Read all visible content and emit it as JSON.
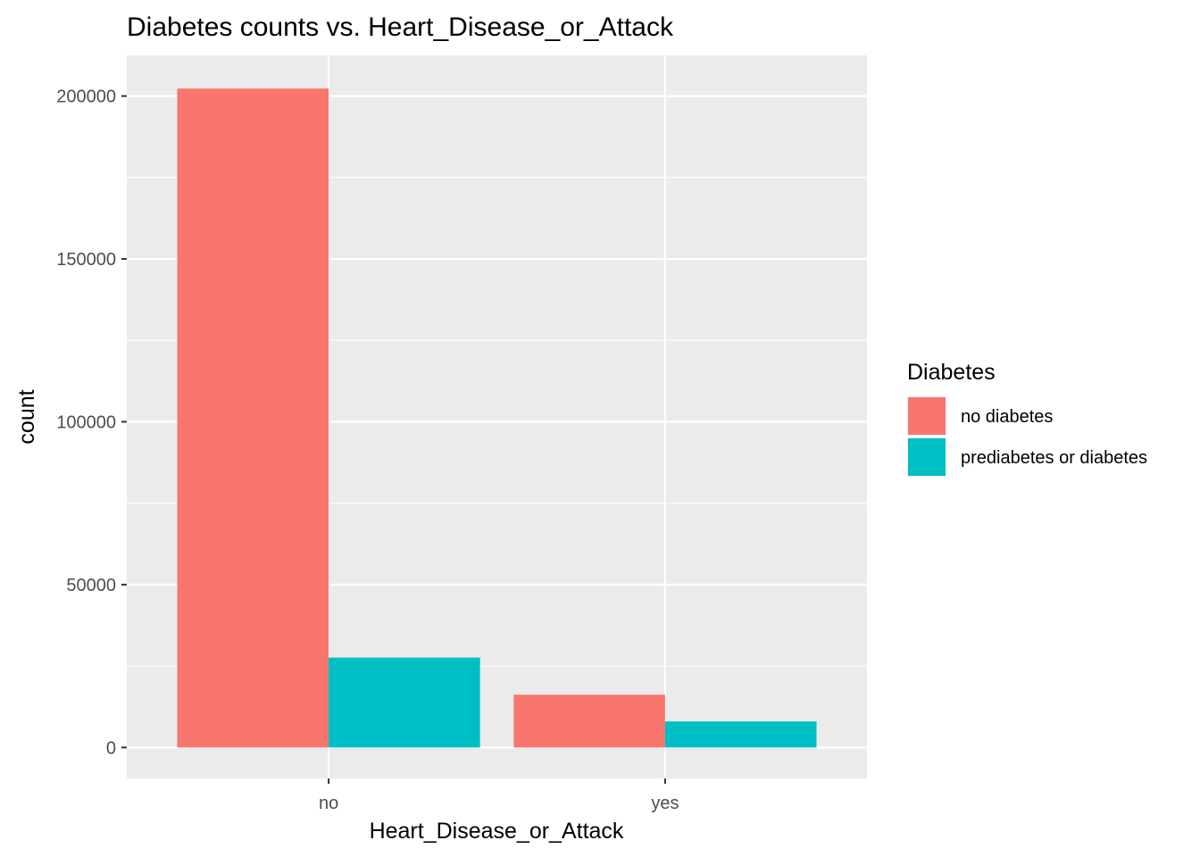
{
  "chart_data": {
    "type": "bar",
    "title": "Diabetes counts vs. Heart_Disease_or_Attack",
    "xlabel": "Heart_Disease_or_Attack",
    "ylabel": "count",
    "categories": [
      "no",
      "yes"
    ],
    "series": [
      {
        "name": "no diabetes",
        "values": [
          202300,
          16200
        ],
        "color": "#F8766D"
      },
      {
        "name": "prediabetes or diabetes",
        "values": [
          27600,
          8000
        ],
        "color": "#00BFC4"
      }
    ],
    "ylim": [
      -9500,
      212500
    ],
    "yticks": [
      0,
      50000,
      100000,
      150000,
      200000
    ],
    "ytick_labels": [
      "0",
      "50000",
      "100000",
      "150000",
      "200000"
    ],
    "grid": true,
    "panel_background": "#EBEBEB",
    "legend": {
      "title": "Diabetes",
      "position": "right"
    }
  }
}
